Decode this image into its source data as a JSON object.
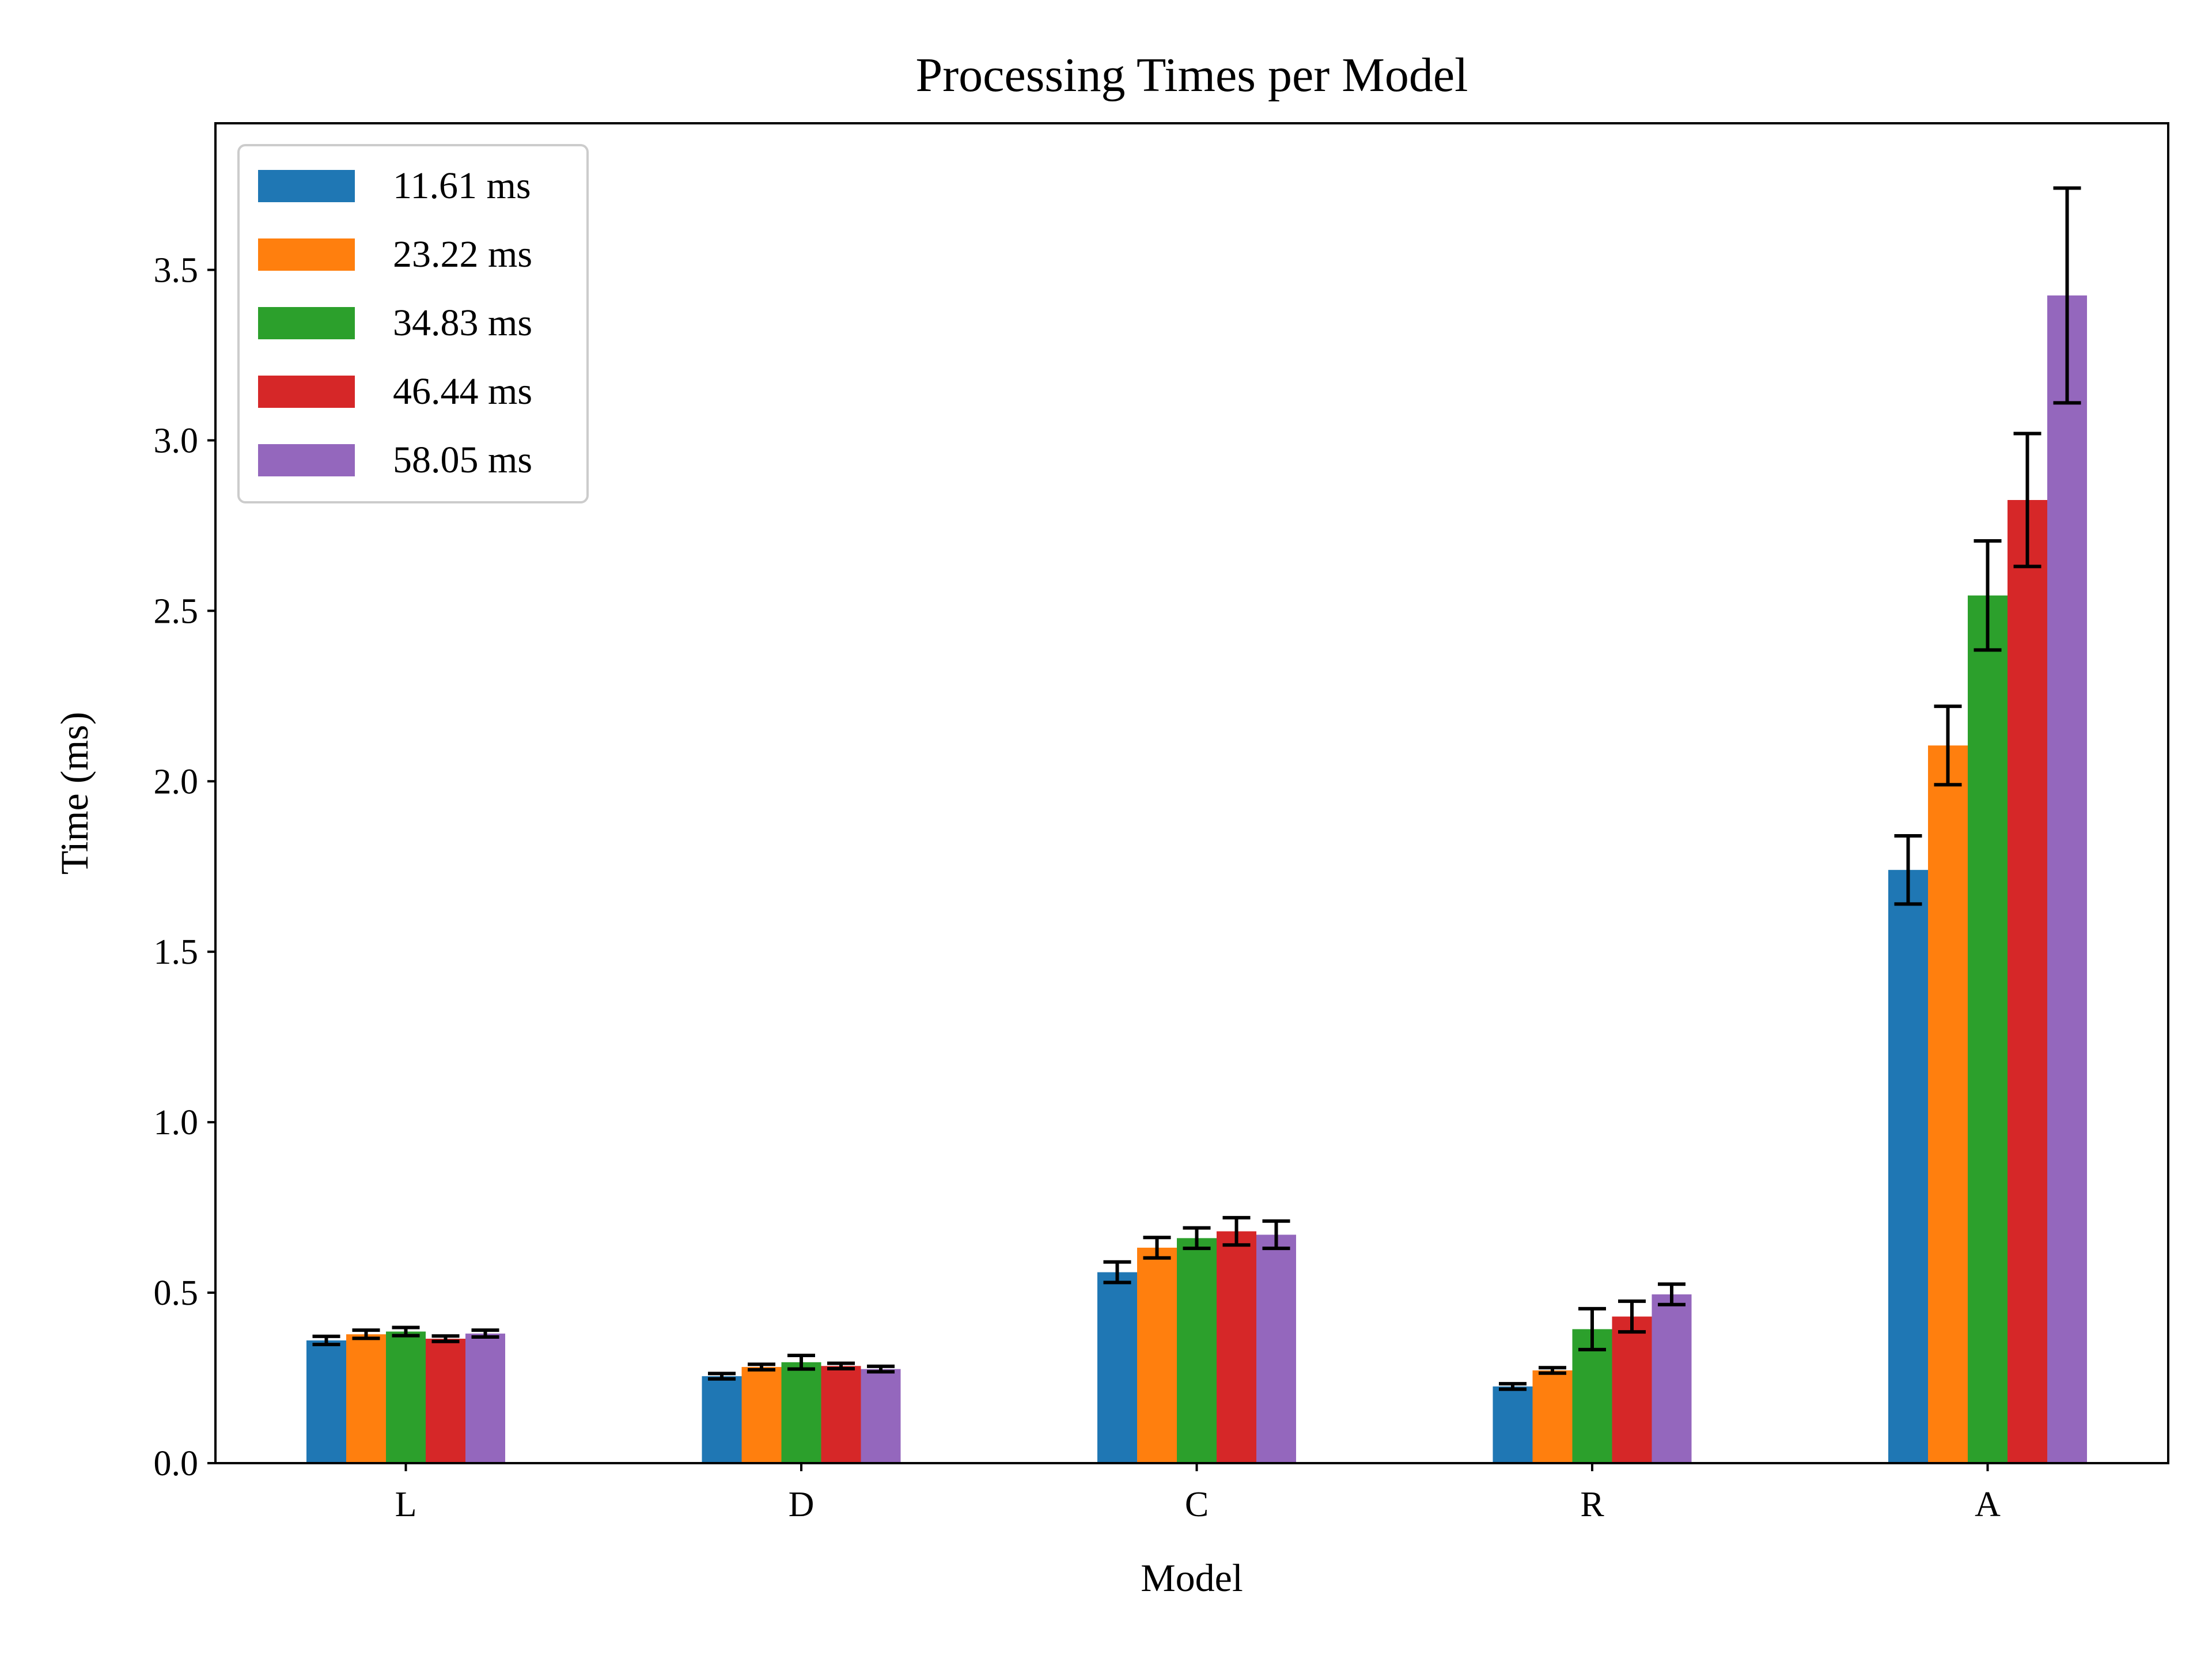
{
  "chart_data": {
    "type": "bar",
    "title": "Processing Times per Model",
    "xlabel": "Model",
    "ylabel": "Time (ms)",
    "categories": [
      "L",
      "D",
      "C",
      "R",
      "A"
    ],
    "ylim": [
      0,
      3.93
    ],
    "yticks": [
      "0.0",
      "0.5",
      "1.0",
      "1.5",
      "2.0",
      "2.5",
      "3.0",
      "3.5"
    ],
    "grid": false,
    "legend_position": "upper-left",
    "error_bars": true,
    "series": [
      {
        "name": "11.61 ms",
        "color": "#1f77b4",
        "values": [
          0.36,
          0.255,
          0.56,
          0.225,
          1.74
        ],
        "errors": [
          0.012,
          0.008,
          0.03,
          0.008,
          0.1
        ]
      },
      {
        "name": "23.22 ms",
        "color": "#ff7f0e",
        "values": [
          0.378,
          0.282,
          0.632,
          0.272,
          2.105
        ],
        "errors": [
          0.012,
          0.008,
          0.03,
          0.008,
          0.115
        ]
      },
      {
        "name": "34.83 ms",
        "color": "#2ca02c",
        "values": [
          0.386,
          0.296,
          0.66,
          0.393,
          2.545
        ],
        "errors": [
          0.012,
          0.02,
          0.03,
          0.06,
          0.16
        ]
      },
      {
        "name": "46.44 ms",
        "color": "#d62728",
        "values": [
          0.365,
          0.285,
          0.68,
          0.43,
          2.825
        ],
        "errors": [
          0.008,
          0.008,
          0.04,
          0.045,
          0.195
        ]
      },
      {
        "name": "58.05 ms",
        "color": "#9467bd",
        "values": [
          0.38,
          0.276,
          0.67,
          0.495,
          3.425
        ],
        "errors": [
          0.01,
          0.008,
          0.04,
          0.03,
          0.315
        ]
      }
    ]
  }
}
